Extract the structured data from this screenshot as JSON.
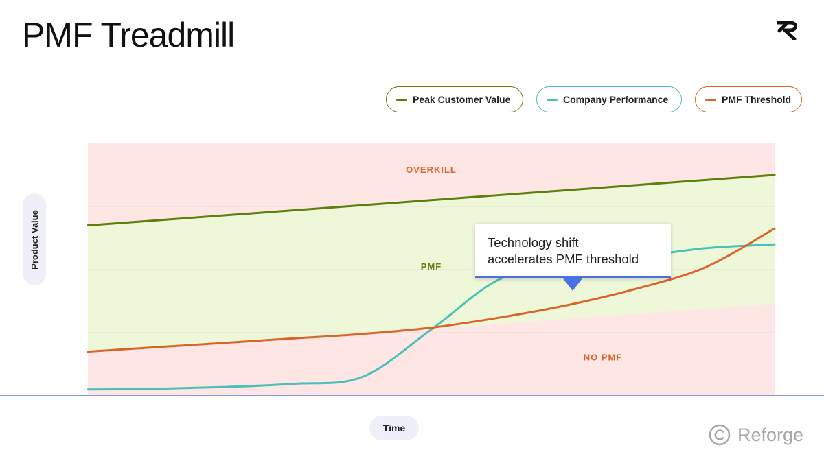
{
  "page": {
    "title": "PMF Treadmill"
  },
  "legend": [
    {
      "id": "peak",
      "label": "Peak Customer Value",
      "color": "#5c7f0e"
    },
    {
      "id": "perf",
      "label": "Company Performance",
      "color": "#4bc0bb"
    },
    {
      "id": "pmf",
      "label": "PMF Threshold",
      "color": "#d9652a"
    }
  ],
  "callout": {
    "text_line1": "Technology shift",
    "text_line2": "accelerates PMF threshold",
    "accent_color": "#4a72e2"
  },
  "brand": {
    "name": "Reforge"
  },
  "chart_data": {
    "type": "line",
    "title": "PMF Treadmill",
    "xlabel": "Time",
    "ylabel": "Product Value",
    "x": [
      0,
      1,
      2,
      3,
      4,
      5,
      6,
      7,
      8,
      9,
      10
    ],
    "xlim": [
      0,
      10
    ],
    "ylim": [
      0,
      4
    ],
    "grid": true,
    "legend_position": "top-right",
    "regions": [
      {
        "label": "OVERKILL",
        "color": "#fde6e4",
        "label_color": "#d9652a"
      },
      {
        "label": "PMF",
        "color": "#eff7d9",
        "label_color": "#5c7f0e"
      },
      {
        "label": "NO PMF",
        "color": "#fde6e4",
        "label_color": "#d9652a"
      }
    ],
    "series": [
      {
        "name": "Peak Customer Value",
        "color": "#5c7f0e",
        "values": [
          2.7,
          2.78,
          2.86,
          2.94,
          3.02,
          3.1,
          3.18,
          3.26,
          3.34,
          3.42,
          3.5
        ]
      },
      {
        "name": "Company Performance",
        "color": "#4bc0bb",
        "values": [
          0.1,
          0.11,
          0.14,
          0.19,
          0.3,
          1.05,
          1.85,
          2.1,
          2.2,
          2.34,
          2.4
        ]
      },
      {
        "name": "PMF Threshold",
        "color": "#d9652a",
        "values": [
          0.7,
          0.77,
          0.84,
          0.91,
          0.98,
          1.08,
          1.24,
          1.44,
          1.7,
          2.04,
          2.65
        ]
      }
    ],
    "pmf_lower_bound": [
      0.7,
      0.77,
      0.84,
      0.91,
      0.98,
      1.06,
      1.14,
      1.22,
      1.3,
      1.38,
      1.46
    ],
    "annotation": "Technology shift accelerates PMF threshold"
  }
}
